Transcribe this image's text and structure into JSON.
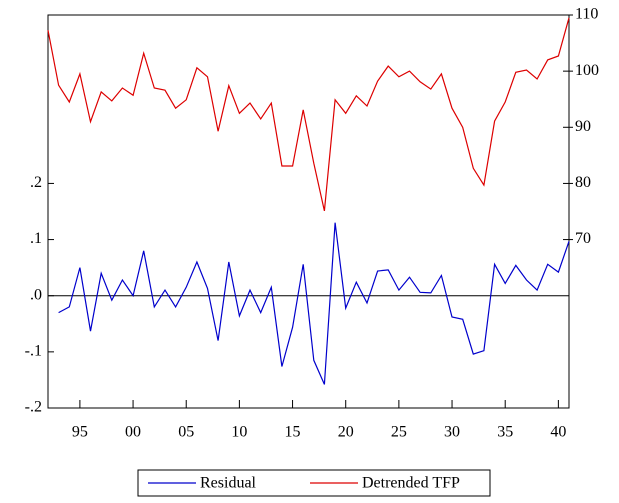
{
  "chart_data": {
    "type": "line",
    "x": [
      1992,
      1993,
      1994,
      1995,
      1996,
      1997,
      1998,
      1999,
      2000,
      2001,
      2002,
      2003,
      2004,
      2005,
      2006,
      2007,
      2008,
      2009,
      2010,
      2011,
      2012,
      2013,
      2014,
      2015,
      2016,
      2017,
      2018,
      2019,
      2020,
      2021,
      2022,
      2023,
      2024,
      2025,
      2026,
      2027,
      2028,
      2029,
      2030,
      2031,
      2032,
      2033,
      2034,
      2035,
      2036,
      2037,
      2038,
      2039,
      2040,
      2041
    ],
    "xlim": [
      1992,
      2041
    ],
    "xticks": [
      {
        "value": 1995,
        "label": "95"
      },
      {
        "value": 2000,
        "label": "00"
      },
      {
        "value": 2005,
        "label": "05"
      },
      {
        "value": 2010,
        "label": "10"
      },
      {
        "value": 2015,
        "label": "15"
      },
      {
        "value": 2020,
        "label": "20"
      },
      {
        "value": 2025,
        "label": "25"
      },
      {
        "value": 2030,
        "label": "30"
      },
      {
        "value": 2035,
        "label": "35"
      },
      {
        "value": 2040,
        "label": "40"
      }
    ],
    "ylim": [
      -0.2,
      0.5
    ],
    "yticks": [
      {
        "value": -0.2,
        "label": "-.2"
      },
      {
        "value": -0.1,
        "label": "-.1"
      },
      {
        "value": 0,
        "label": ".0"
      },
      {
        "value": 0.1,
        "label": ".1"
      },
      {
        "value": 0.2,
        "label": ".2"
      }
    ],
    "y2lim": [
      40,
      110
    ],
    "y2ticks": [
      70,
      80,
      90,
      100,
      110
    ],
    "zero_line": true,
    "legend": "bottom",
    "series": [
      {
        "name": "Residual",
        "color": "#0000cc",
        "axis": "y",
        "values": [
          null,
          -0.03,
          -0.02,
          0.05,
          -0.063,
          0.04,
          -0.008,
          0.028,
          0,
          0.08,
          -0.02,
          0.01,
          -0.02,
          0.015,
          0.06,
          0.013,
          -0.08,
          0.06,
          -0.036,
          0.01,
          -0.03,
          0.015,
          -0.126,
          -0.056,
          0.056,
          -0.115,
          -0.158,
          0.13,
          -0.022,
          0.024,
          -0.013,
          0.044,
          0.046,
          0.01,
          0.033,
          0.006,
          0.005,
          0.036,
          -0.038,
          -0.042,
          -0.104,
          -0.098,
          0.056,
          0.022,
          0.054,
          0.028,
          0.01,
          0.056,
          0.042,
          0.097
        ]
      },
      {
        "name": "Detrended TFP",
        "color": "#dd0000",
        "axis": "y2",
        "values": [
          107.3,
          97.5,
          94.5,
          99.5,
          91,
          96.3,
          94.7,
          97,
          95.7,
          103.2,
          97,
          96.6,
          93.4,
          94.9,
          100.6,
          99,
          89.3,
          97.4,
          92.5,
          94.3,
          91.5,
          94.3,
          83.1,
          83.1,
          93.1,
          83.6,
          75.1,
          94.9,
          92.5,
          95.6,
          93.8,
          98.2,
          100.9,
          99,
          100,
          98.1,
          96.8,
          99.5,
          93.4,
          90,
          82.7,
          79.7,
          91.1,
          94.5,
          99.8,
          100.2,
          98.6,
          102,
          102.7,
          109.5
        ]
      }
    ]
  }
}
